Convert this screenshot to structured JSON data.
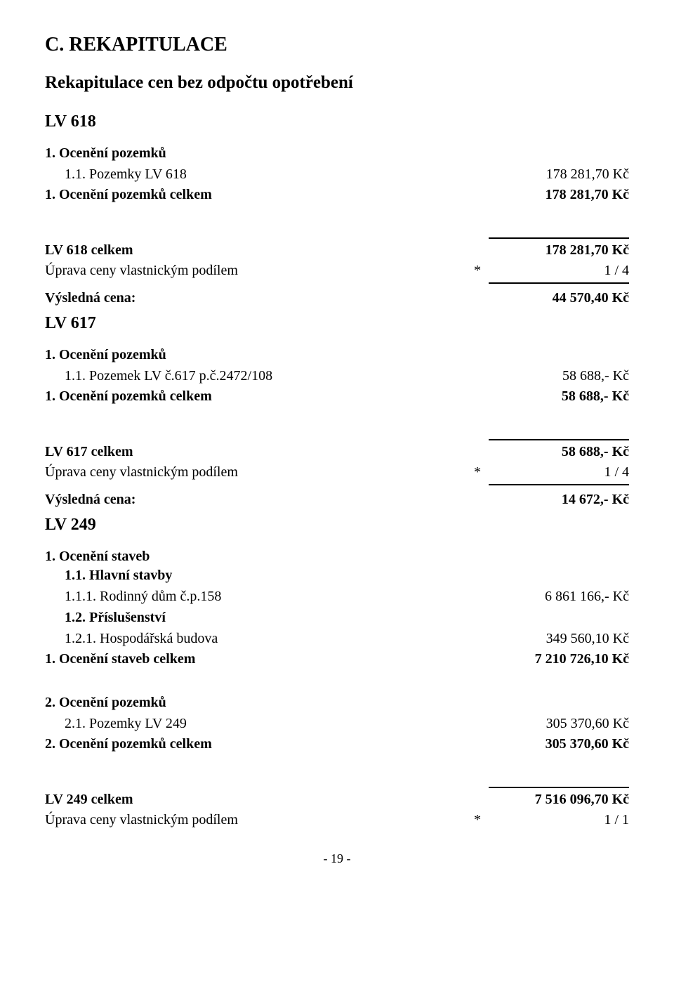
{
  "section_letter_title": "C. REKAPITULACE",
  "subtitle": "Rekapitulace cen bez odpočtu opotřebení",
  "page_number": "- 19 -",
  "lv618": {
    "title": "LV 618",
    "sec1_head": "1. Ocenění pozemků",
    "item1_label": "1.1. Pozemky LV 618",
    "item1_value": "178 281,70 Kč",
    "total_label": "1. Ocenění pozemků celkem",
    "total_value": "178 281,70 Kč",
    "celkem_label": "LV 618 celkem",
    "celkem_value": "178 281,70 Kč",
    "uprava_label": "Úprava ceny vlastnickým podílem",
    "uprava_star": "*",
    "uprava_value": "1 / 4",
    "vysledna_label": "Výsledná cena:",
    "vysledna_value": "44 570,40 Kč"
  },
  "lv617": {
    "title": "LV 617",
    "sec1_head": "1. Ocenění pozemků",
    "item1_label": "1.1. Pozemek LV č.617 p.č.2472/108",
    "item1_value": "58 688,- Kč",
    "total_label": "1. Ocenění pozemků celkem",
    "total_value": "58 688,- Kč",
    "celkem_label": "LV 617 celkem",
    "celkem_value": "58 688,- Kč",
    "uprava_label": "Úprava ceny vlastnickým podílem",
    "uprava_star": "*",
    "uprava_value": "1 / 4",
    "vysledna_label": "Výsledná cena:",
    "vysledna_value": "14 672,- Kč"
  },
  "lv249": {
    "title": "LV 249",
    "sec1_head": "1. Ocenění staveb",
    "sub11_head": "1.1. Hlavní stavby",
    "item111_label": "1.1.1. Rodinný dům č.p.158",
    "item111_value": "6 861 166,- Kč",
    "sub12_head": "1.2. Příslušenství",
    "item121_label": "1.2.1. Hospodářská budova",
    "item121_value": "349 560,10 Kč",
    "total1_label": "1. Ocenění staveb celkem",
    "total1_value": "7 210 726,10 Kč",
    "sec2_head": "2. Ocenění pozemků",
    "item21_label": "2.1. Pozemky LV 249",
    "item21_value": "305 370,60 Kč",
    "total2_label": "2. Ocenění pozemků celkem",
    "total2_value": "305 370,60 Kč",
    "celkem_label": "LV 249 celkem",
    "celkem_value": "7 516 096,70 Kč",
    "uprava_label": "Úprava ceny vlastnickým podílem",
    "uprava_star": "*",
    "uprava_value": "1 / 1"
  }
}
